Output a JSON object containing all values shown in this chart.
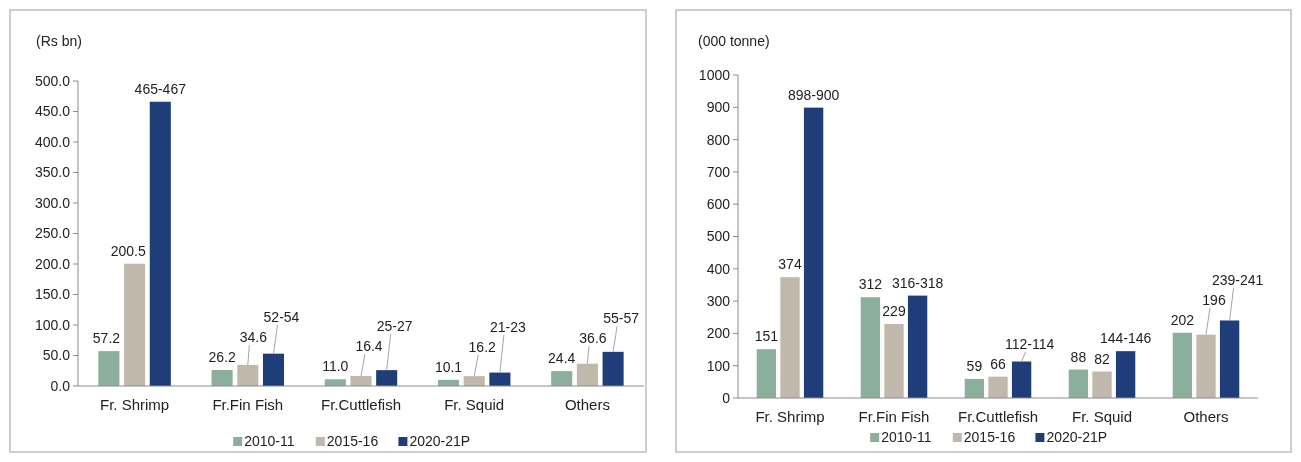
{
  "chart_data": [
    {
      "type": "bar",
      "ylabel": "(Rs bn)",
      "categories": [
        "Fr. Shrimp",
        "Fr.Fin Fish",
        "Fr.Cuttlefish",
        "Fr. Squid",
        "Others"
      ],
      "series": [
        {
          "name": "2010-11",
          "color": "#8cae9c",
          "values": [
            57.2,
            26.2,
            11.0,
            10.1,
            24.4
          ],
          "value_labels": [
            "57.2",
            "26.2",
            "11.0",
            "10.1",
            "24.4"
          ]
        },
        {
          "name": "2015-16",
          "color": "#c0b8aa",
          "values": [
            200.5,
            34.6,
            16.4,
            16.2,
            36.6
          ],
          "value_labels": [
            "200.5",
            "34.6",
            "16.4",
            "16.2",
            "36.6"
          ]
        },
        {
          "name": "2020-21P",
          "color": "#1f3d79",
          "values": [
            466,
            53,
            26,
            22,
            56
          ],
          "value_labels": [
            "465-467",
            "52-54",
            "25-27",
            "21-23",
            "55-57"
          ]
        }
      ],
      "ylim": [
        0,
        500
      ],
      "yticks": [
        {
          "value": 0,
          "label": "0.0"
        },
        {
          "value": 50,
          "label": "50.0"
        },
        {
          "value": 100,
          "label": "100.0"
        },
        {
          "value": 150,
          "label": "150.0"
        },
        {
          "value": 200,
          "label": "200.0"
        },
        {
          "value": 250,
          "label": "250.0"
        },
        {
          "value": 300,
          "label": "300.0"
        },
        {
          "value": 350,
          "label": "350.0"
        },
        {
          "value": 400,
          "label": "400.0"
        },
        {
          "value": 450,
          "label": "450.0"
        },
        {
          "value": 500,
          "label": "500.0"
        }
      ],
      "legend": "bottom"
    },
    {
      "type": "bar",
      "ylabel": "(000 tonne)",
      "categories": [
        "Fr. Shrimp",
        "Fr.Fin Fish",
        "Fr.Cuttlefish",
        "Fr. Squid",
        "Others"
      ],
      "series": [
        {
          "name": "2010-11",
          "color": "#8cae9c",
          "values": [
            151,
            312,
            59,
            88,
            202
          ],
          "value_labels": [
            "151",
            "312",
            "59",
            "88",
            "202"
          ]
        },
        {
          "name": "2015-16",
          "color": "#c0b8aa",
          "values": [
            374,
            229,
            66,
            82,
            196
          ],
          "value_labels": [
            "374",
            "229",
            "66",
            "82",
            "196"
          ]
        },
        {
          "name": "2020-21P",
          "color": "#1f3d79",
          "values": [
            899,
            317,
            113,
            145,
            240
          ],
          "value_labels": [
            "898-900",
            "316-318",
            "112-114",
            "144-146",
            "239-241"
          ]
        }
      ],
      "ylim": [
        0,
        1000
      ],
      "yticks": [
        0,
        100,
        200,
        300,
        400,
        500,
        600,
        700,
        800,
        900,
        1000
      ],
      "legend": "bottom"
    }
  ]
}
